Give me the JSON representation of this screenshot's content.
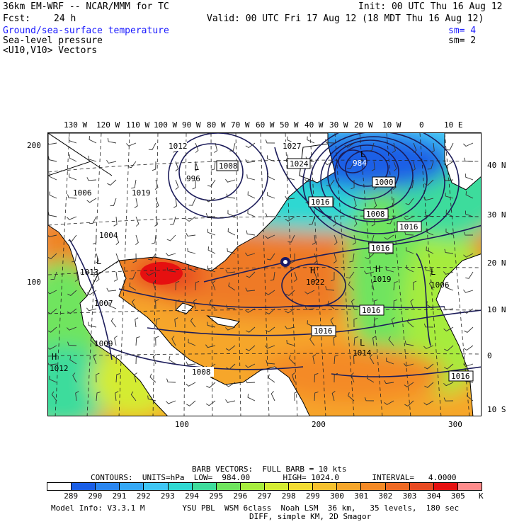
{
  "header": {
    "model": "36km EM-WRF -- NCAR/MMM for TC",
    "init": "Init: 00 UTC Thu 16 Aug 12",
    "fcst_label": "Fcst:",
    "fcst_value": "24 h",
    "valid": "Valid: 00 UTC Fri 17 Aug 12 (18 MDT Thu 16 Aug 12)"
  },
  "fields": [
    {
      "name": "Ground/sea-surface temperature",
      "sm": "sm= 4",
      "color": "#1a1aff"
    },
    {
      "name": "Sea-level pressure",
      "sm": "sm= 2",
      "color": "#000000"
    },
    {
      "name": "<U10,V10> Vectors",
      "sm": "",
      "color": "#000000"
    }
  ],
  "map": {
    "top_lon_labels": [
      "130 W",
      "120 W",
      "110 W",
      "100 W",
      "90 W",
      "80 W",
      "70 W",
      "60 W",
      "50 W",
      "40 W",
      "30 W",
      "20 W",
      "10 W",
      "0",
      "10 E"
    ],
    "right_lat_labels": [
      "40 N",
      "30 N",
      "20 N",
      "10 N",
      "0",
      "10 S"
    ],
    "left_grid_labels": [
      "200",
      "100"
    ],
    "bottom_grid_labels": [
      "100",
      "200",
      "300"
    ],
    "isobar_labels": [
      "1012",
      "1008",
      "1027",
      "1024",
      "984",
      "1000",
      "1008",
      "1016",
      "1016",
      "1016",
      "1006",
      "1019",
      "996",
      "1004",
      "1013",
      "1022",
      "1019",
      "1006",
      "1016",
      "1016",
      "1007",
      "1009",
      "1014",
      "1012",
      "1008",
      "1016"
    ],
    "pressure_centers": [
      "L",
      "L",
      "H",
      "L",
      "H",
      "L",
      "L",
      "H"
    ]
  },
  "footer": {
    "barb": "BARB VECTORS:  FULL BARB = 10 kts",
    "contours": "CONTOURS:  UNITS=hPa  LOW=  984.00       HIGH= 1024.0       INTERVAL=   4.0000",
    "model_info": "Model Info: V3.3.1 M        YSU PBL  WSM 6class  Noah LSM  36 km,   35 levels,  180 sec",
    "model_info2": "DIFF, simple KM, 2D Smagor",
    "units": "K"
  },
  "colorbar": {
    "labels": [
      "289",
      "290",
      "291",
      "292",
      "293",
      "294",
      "295",
      "296",
      "297",
      "298",
      "299",
      "300",
      "301",
      "302",
      "303",
      "304",
      "305"
    ],
    "colors": [
      "#ffffff",
      "#1a5ee6",
      "#2a86f0",
      "#35a8f5",
      "#3fc6f4",
      "#2fd8d2",
      "#3edc9c",
      "#6fe45e",
      "#a6ec3e",
      "#d4ec32",
      "#f3dc32",
      "#f6c12e",
      "#f6a62a",
      "#f48a26",
      "#ef6a24",
      "#e84a22",
      "#e61010",
      "#ff8c8c"
    ]
  }
}
